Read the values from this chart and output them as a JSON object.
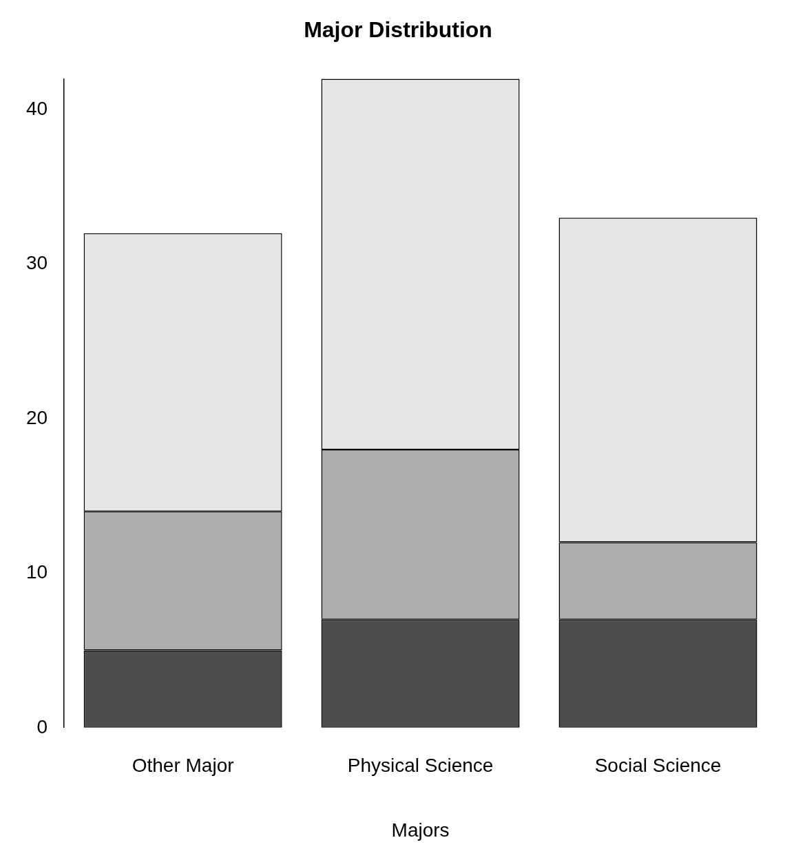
{
  "chart_data": {
    "type": "bar",
    "title": "Major Distribution",
    "xlabel": "Majors",
    "categories": [
      "Other Major",
      "Physical Science",
      "Social Science"
    ],
    "stacked": true,
    "series": [
      {
        "color": "#4d4d4d",
        "values": [
          5,
          7,
          7
        ]
      },
      {
        "color": "#aeaeae",
        "values": [
          9,
          11,
          5
        ]
      },
      {
        "color": "#e6e6e6",
        "values": [
          18,
          24,
          21
        ]
      }
    ],
    "ylim": [
      0,
      42
    ],
    "yticks": [
      0,
      10,
      20,
      30,
      40
    ],
    "grid": false,
    "legend": false
  }
}
